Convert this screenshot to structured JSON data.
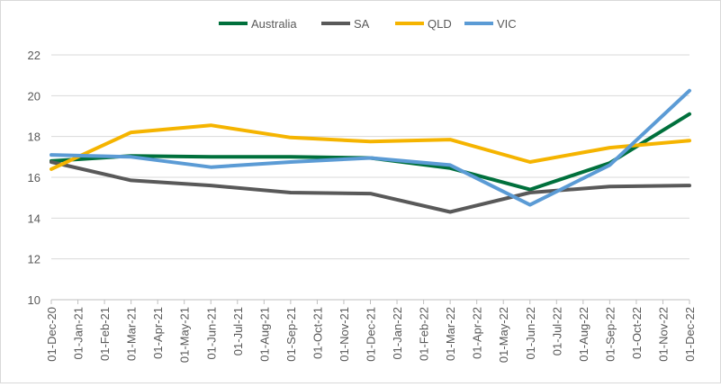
{
  "chart_data": {
    "type": "line",
    "title": "",
    "xlabel": "",
    "ylabel": "",
    "ylim": [
      10,
      22
    ],
    "yticks": [
      10,
      12,
      14,
      16,
      18,
      20,
      22
    ],
    "grid": "horizontal",
    "legend_position": "top",
    "categories": [
      "01-Dec-20",
      "01-Jan-21",
      "01-Feb-21",
      "01-Mar-21",
      "01-Apr-21",
      "01-May-21",
      "01-Jun-21",
      "01-Jul-21",
      "01-Aug-21",
      "01-Sep-21",
      "01-Oct-21",
      "01-Nov-21",
      "01-Dec-21",
      "01-Jan-22",
      "01-Feb-22",
      "01-Mar-22",
      "01-Apr-22",
      "01-May-22",
      "01-Jun-22",
      "01-Jul-22",
      "01-Aug-22",
      "01-Sep-22",
      "01-Oct-22",
      "01-Nov-22",
      "01-Dec-22"
    ],
    "series": [
      {
        "name": "Australia",
        "color": "#00703c",
        "points": [
          [
            0,
            16.8
          ],
          [
            3,
            17.05
          ],
          [
            6,
            17.0
          ],
          [
            9,
            17.0
          ],
          [
            12,
            16.95
          ],
          [
            15,
            16.45
          ],
          [
            18,
            15.4
          ],
          [
            21,
            16.7
          ],
          [
            24,
            19.1
          ]
        ]
      },
      {
        "name": "SA",
        "color": "#595959",
        "points": [
          [
            0,
            16.75
          ],
          [
            3,
            15.85
          ],
          [
            6,
            15.6
          ],
          [
            9,
            15.25
          ],
          [
            12,
            15.2
          ],
          [
            15,
            14.3
          ],
          [
            18,
            15.25
          ],
          [
            21,
            15.55
          ],
          [
            24,
            15.6
          ]
        ]
      },
      {
        "name": "QLD",
        "color": "#f5b400",
        "points": [
          [
            0,
            16.4
          ],
          [
            3,
            18.2
          ],
          [
            6,
            18.55
          ],
          [
            9,
            17.95
          ],
          [
            12,
            17.75
          ],
          [
            15,
            17.85
          ],
          [
            18,
            16.75
          ],
          [
            21,
            17.45
          ],
          [
            24,
            17.8
          ]
        ]
      },
      {
        "name": "VIC",
        "color": "#5b9bd5",
        "points": [
          [
            0,
            17.1
          ],
          [
            3,
            17.0
          ],
          [
            6,
            16.5
          ],
          [
            9,
            16.75
          ],
          [
            12,
            16.95
          ],
          [
            15,
            16.6
          ],
          [
            18,
            14.65
          ],
          [
            21,
            16.6
          ],
          [
            24,
            20.25
          ]
        ]
      }
    ]
  }
}
